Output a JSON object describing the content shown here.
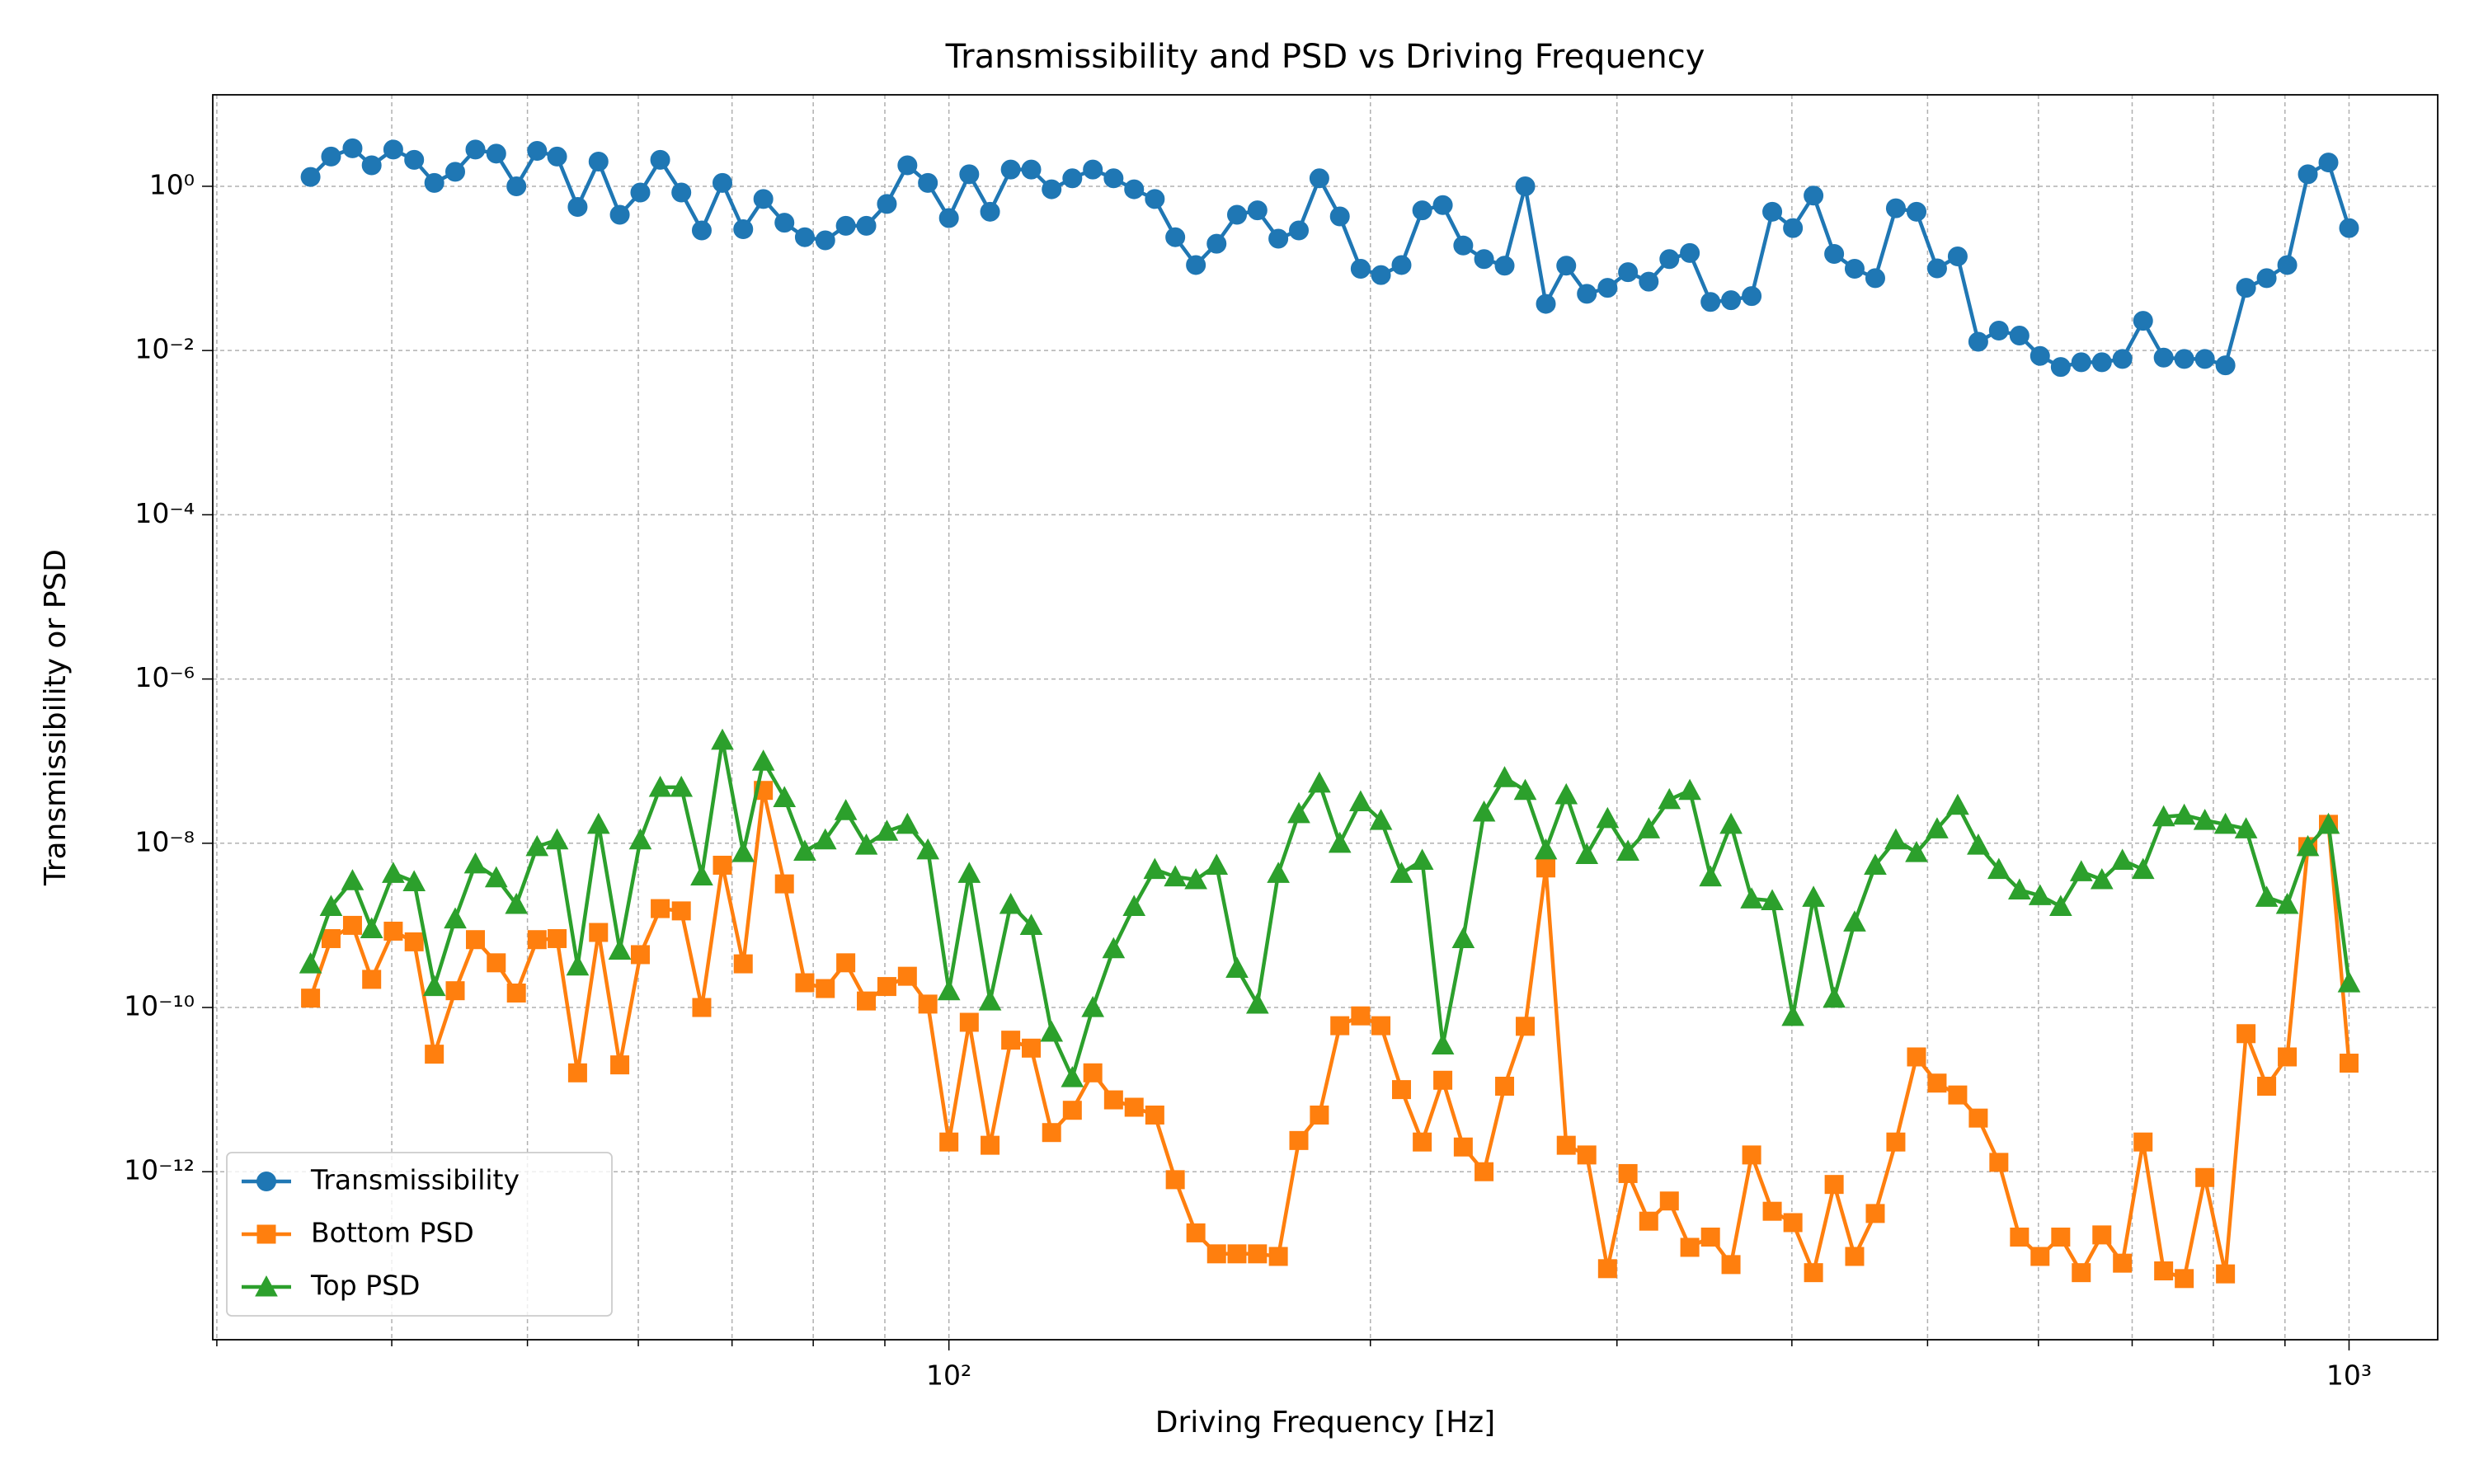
{
  "chart_data": {
    "type": "line",
    "title": "Transmissibility and PSD vs Driving Frequency",
    "xlabel": "Driving Frequency [Hz]",
    "ylabel": "Transmissibility or PSD",
    "xscale": "log",
    "yscale": "log",
    "grid": true,
    "legend": "lower left",
    "xlim": [
      29.8,
      1157
    ],
    "ylim": [
      9e-15,
      13
    ],
    "xticks": [
      {
        "value": 100,
        "label": "10²"
      },
      {
        "value": 1000,
        "label": "10³"
      }
    ],
    "xminorticks": [
      30,
      40,
      50,
      60,
      70,
      80,
      90,
      200,
      300,
      400,
      500,
      600,
      700,
      800,
      900
    ],
    "yticks": [
      {
        "value": 1e-12,
        "label": "10⁻¹²"
      },
      {
        "value": 1e-10,
        "label": "10⁻¹⁰"
      },
      {
        "value": 1e-08,
        "label": "10⁻⁸"
      },
      {
        "value": 1e-06,
        "label": "10⁻⁶"
      },
      {
        "value": 0.0001,
        "label": "10⁻⁴"
      },
      {
        "value": 0.01,
        "label": "10⁻²"
      },
      {
        "value": 1,
        "label": "10⁰"
      }
    ],
    "x": [
      35.0,
      36.2,
      37.5,
      38.7,
      40.1,
      41.5,
      42.9,
      44.4,
      45.9,
      47.5,
      49.1,
      50.8,
      52.5,
      54.3,
      56.2,
      58.2,
      60.2,
      62.2,
      64.4,
      66.6,
      68.9,
      71.3,
      73.7,
      76.3,
      78.9,
      81.6,
      84.4,
      87.3,
      90.3,
      93.4,
      96.6,
      100.0,
      103.4,
      107.0,
      110.7,
      114.5,
      118.4,
      122.5,
      126.7,
      131.1,
      135.6,
      140.3,
      145.1,
      150.1,
      155.3,
      160.6,
      166.1,
      171.9,
      177.8,
      183.9,
      190.2,
      196.8,
      203.5,
      210.5,
      217.8,
      225.3,
      233.0,
      241.1,
      249.4,
      258.0,
      266.9,
      276.0,
      285.5,
      295.4,
      305.5,
      316.1,
      327.0,
      338.2,
      349.9,
      361.9,
      374.4,
      387.3,
      400.7,
      414.5,
      428.8,
      443.5,
      458.8,
      474.6,
      491.0,
      507.9,
      525.4,
      543.5,
      562.2,
      581.6,
      601.6,
      622.4,
      643.8,
      666.0,
      688.9,
      712.7,
      737.2,
      762.6,
      788.9,
      816.1,
      844.2,
      873.3,
      903.4,
      934.5,
      966.7,
      1000
    ],
    "series": [
      {
        "name": "Transmissibility",
        "color": "#1f77b4",
        "marker": "circle",
        "values": [
          1.3,
          2.3,
          2.9,
          1.8,
          2.8,
          2.1,
          1.1,
          1.5,
          2.8,
          2.5,
          1.0,
          2.7,
          2.3,
          0.56,
          2.0,
          0.45,
          0.84,
          2.1,
          0.84,
          0.29,
          1.1,
          0.3,
          0.7,
          0.36,
          0.24,
          0.22,
          0.33,
          0.33,
          0.61,
          1.8,
          1.1,
          0.41,
          1.4,
          0.49,
          1.6,
          1.6,
          0.92,
          1.25,
          1.6,
          1.25,
          0.92,
          0.7,
          0.24,
          0.11,
          0.2,
          0.45,
          0.51,
          0.23,
          0.29,
          1.25,
          0.43,
          0.099,
          0.083,
          0.11,
          0.51,
          0.59,
          0.19,
          0.13,
          0.108,
          1.0,
          0.037,
          0.108,
          0.049,
          0.058,
          0.09,
          0.069,
          0.13,
          0.154,
          0.039,
          0.041,
          0.046,
          0.49,
          0.31,
          0.77,
          0.15,
          0.099,
          0.076,
          0.54,
          0.49,
          0.1,
          0.14,
          0.0128,
          0.0175,
          0.0152,
          0.0086,
          0.0063,
          0.0072,
          0.0072,
          0.0079,
          0.023,
          0.0082,
          0.0079,
          0.0079,
          0.0066,
          0.058,
          0.076,
          0.11,
          1.4,
          1.95,
          0.31
        ]
      },
      {
        "name": "Bottom PSD",
        "color": "#ff7f0e",
        "marker": "square",
        "values": [
          1.3e-10,
          6.9e-10,
          1e-09,
          2.2e-10,
          8.5e-10,
          6.3e-10,
          2.7e-11,
          1.6e-10,
          6.7e-10,
          3.5e-10,
          1.5e-10,
          6.7e-10,
          6.9e-10,
          1.6e-11,
          8.2e-10,
          2e-11,
          4.4e-10,
          1.6e-09,
          1.5e-09,
          1e-10,
          5.4e-09,
          3.4e-10,
          4.4e-08,
          3.2e-09,
          2e-10,
          1.7e-10,
          3.5e-10,
          1.2e-10,
          1.8e-10,
          2.4e-10,
          1.1e-10,
          2.3e-12,
          6.6e-11,
          2.1e-12,
          4e-11,
          3.2e-11,
          3e-12,
          5.6e-12,
          1.6e-11,
          7.5e-12,
          6.1e-12,
          4.9e-12,
          8e-13,
          1.8e-13,
          1e-13,
          1e-13,
          1e-13,
          9.3e-14,
          2.4e-12,
          4.9e-12,
          6e-11,
          7.9e-11,
          6e-11,
          1e-11,
          2.3e-12,
          1.3e-11,
          2e-12,
          1e-12,
          1.1e-11,
          5.9e-11,
          5e-09,
          2.1e-12,
          1.6e-12,
          6.6e-14,
          9.5e-13,
          2.5e-13,
          4.4e-13,
          1.2e-13,
          1.6e-13,
          7.4e-14,
          1.6e-12,
          3.3e-13,
          2.4e-13,
          5.9e-14,
          7e-13,
          9.3e-14,
          3.1e-13,
          2.3e-12,
          2.5e-11,
          1.2e-11,
          8.6e-12,
          4.5e-12,
          1.3e-12,
          1.6e-13,
          9.3e-14,
          1.6e-13,
          5.9e-14,
          1.7e-13,
          7.7e-14,
          2.3e-12,
          6.2e-14,
          5e-14,
          8.5e-13,
          5.7e-14,
          4.8e-11,
          1.1e-11,
          2.5e-11,
          9.1e-09,
          1.7e-08,
          2.1e-11
        ]
      },
      {
        "name": "Top PSD",
        "color": "#2ca02c",
        "marker": "triangle",
        "values": [
          3.4e-10,
          1.7e-09,
          3.5e-09,
          9.1e-10,
          4.3e-09,
          3.4e-09,
          1.8e-10,
          1.2e-09,
          5.6e-09,
          3.8e-09,
          1.8e-09,
          9.1e-09,
          1.1e-08,
          3.2e-10,
          1.7e-08,
          5e-10,
          1.1e-08,
          4.8e-08,
          4.8e-08,
          4e-09,
          1.8e-07,
          7.7e-09,
          1e-07,
          3.6e-08,
          8e-09,
          1.1e-08,
          2.5e-08,
          9.5e-09,
          1.4e-08,
          1.7e-08,
          8.3e-09,
          1.6e-10,
          4.3e-09,
          1.2e-10,
          1.8e-09,
          1e-09,
          5e-11,
          1.4e-11,
          1e-10,
          5.2e-10,
          1.7e-09,
          4.8e-09,
          3.9e-09,
          3.6e-09,
          5.4e-09,
          3e-10,
          1.1e-10,
          4.3e-09,
          2.3e-08,
          5.4e-08,
          1e-08,
          3.2e-08,
          1.9e-08,
          4.3e-09,
          6.2e-09,
          3.5e-11,
          6.9e-10,
          2.4e-08,
          6.3e-08,
          4.4e-08,
          8.3e-09,
          3.9e-08,
          7.3e-09,
          2e-08,
          8e-09,
          1.5e-08,
          3.4e-08,
          4.4e-08,
          3.9e-09,
          1.7e-08,
          2.1e-09,
          2e-09,
          7.8e-11,
          2.2e-09,
          1.3e-10,
          1.1e-09,
          5.4e-09,
          1.1e-08,
          7.7e-09,
          1.5e-08,
          2.9e-08,
          9.5e-09,
          4.8e-09,
          2.7e-09,
          2.3e-09,
          1.7e-09,
          4.5e-09,
          3.6e-09,
          6.2e-09,
          4.8e-09,
          2.1e-08,
          2.2e-08,
          1.9e-08,
          1.7e-08,
          1.5e-08,
          2.2e-09,
          1.8e-09,
          9.1e-09,
          1.7e-08,
          2e-10
        ]
      }
    ]
  }
}
